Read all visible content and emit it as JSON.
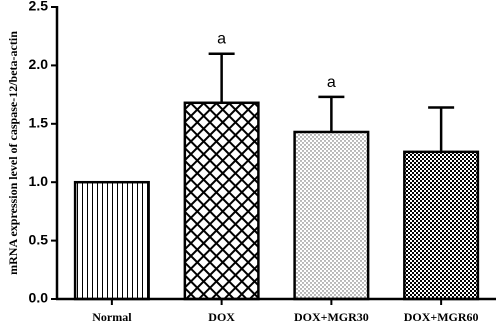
{
  "chart_data": {
    "type": "bar",
    "y_label": "mRNA expression level of caspase-12/beta-actin",
    "categories": [
      "Normal",
      "DOX",
      "DOX+MGR30",
      "DOX+MGR60"
    ],
    "values": [
      1.0,
      1.68,
      1.43,
      1.26
    ],
    "errors": [
      0,
      0.42,
      0.3,
      0.38
    ],
    "annotations": [
      {
        "text": "a",
        "index": 1
      },
      {
        "text": "a",
        "index": 2
      }
    ],
    "color": "#000000",
    "ylim": [
      0,
      2.5
    ],
    "yticks": [
      {
        "value": 0,
        "label": "0.0"
      },
      0.5,
      {
        "value": 1,
        "label": "1.0"
      },
      1.5,
      {
        "value": 2,
        "label": "2.0"
      },
      2.5
    ],
    "grid": false
  }
}
